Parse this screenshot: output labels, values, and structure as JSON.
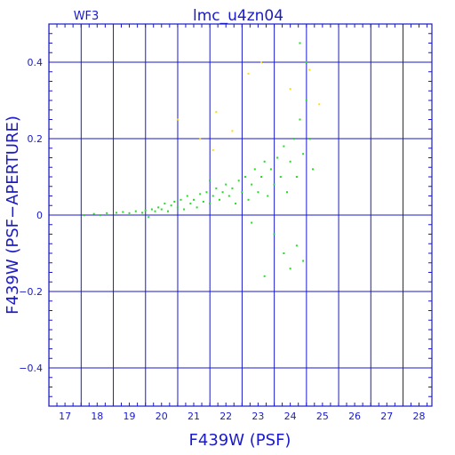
{
  "chart_data": {
    "type": "scatter",
    "title": "lmc_u4zn04",
    "panel_label": "WF3",
    "xlabel": "F439W (PSF)",
    "ylabel": "F439W (PSF−APERTURE)",
    "xlim": [
      16.5,
      28.4
    ],
    "ylim": [
      -0.5,
      0.5
    ],
    "x_ticks": [
      17,
      18,
      19,
      20,
      21,
      22,
      23,
      24,
      25,
      26,
      27,
      28
    ],
    "y_ticks": [
      0.4,
      0.2,
      0,
      -0.2,
      -0.4
    ],
    "y_tick_labels": [
      "0.4",
      "0.2",
      "0",
      "−0.2",
      "−0.4"
    ],
    "grid": true,
    "legend": "none",
    "colors": {
      "axes": "#1a1acc",
      "grid": "#1a1acc",
      "main_points": "#22dd22",
      "outlier_points": "#ffdd00"
    },
    "series": [
      {
        "color": "#22dd22",
        "points": [
          [
            17.6,
            0.0
          ],
          [
            17.9,
            0.003
          ],
          [
            18.1,
            0.0
          ],
          [
            18.3,
            0.005
          ],
          [
            18.6,
            0.006
          ],
          [
            18.8,
            0.008
          ],
          [
            19.0,
            0.005
          ],
          [
            19.2,
            0.01
          ],
          [
            19.4,
            0.006
          ],
          [
            19.5,
            0.012
          ],
          [
            19.6,
            -0.005
          ],
          [
            19.7,
            0.015
          ],
          [
            19.8,
            0.01
          ],
          [
            19.9,
            0.02
          ],
          [
            20.0,
            0.015
          ],
          [
            20.1,
            0.03
          ],
          [
            20.2,
            0.01
          ],
          [
            20.3,
            0.025
          ],
          [
            20.4,
            0.035
          ],
          [
            20.5,
            0.02
          ],
          [
            20.6,
            0.04
          ],
          [
            20.7,
            0.015
          ],
          [
            20.8,
            0.05
          ],
          [
            20.9,
            0.03
          ],
          [
            21.0,
            0.04
          ],
          [
            21.1,
            0.02
          ],
          [
            21.2,
            0.055
          ],
          [
            21.3,
            0.035
          ],
          [
            21.4,
            0.06
          ],
          [
            21.5,
            0.03
          ],
          [
            21.6,
            0.05
          ],
          [
            21.7,
            0.07
          ],
          [
            21.8,
            0.04
          ],
          [
            21.9,
            0.06
          ],
          [
            22.0,
            0.08
          ],
          [
            22.1,
            0.05
          ],
          [
            22.2,
            0.07
          ],
          [
            22.3,
            0.03
          ],
          [
            22.4,
            0.09
          ],
          [
            22.5,
            0.06
          ],
          [
            22.6,
            0.1
          ],
          [
            22.7,
            0.04
          ],
          [
            22.8,
            0.08
          ],
          [
            22.9,
            0.12
          ],
          [
            23.0,
            0.06
          ],
          [
            23.1,
            0.1
          ],
          [
            23.2,
            0.14
          ],
          [
            23.3,
            0.05
          ],
          [
            23.4,
            0.12
          ],
          [
            23.5,
            0.08
          ],
          [
            23.6,
            0.15
          ],
          [
            23.7,
            0.1
          ],
          [
            23.8,
            0.18
          ],
          [
            23.9,
            0.06
          ],
          [
            24.0,
            0.14
          ],
          [
            24.1,
            0.2
          ],
          [
            24.2,
            0.1
          ],
          [
            24.3,
            0.25
          ],
          [
            24.4,
            0.16
          ],
          [
            24.5,
            0.3
          ],
          [
            24.6,
            0.2
          ],
          [
            24.7,
            0.12
          ],
          [
            23.5,
            -0.05
          ],
          [
            23.8,
            -0.1
          ],
          [
            24.0,
            -0.14
          ],
          [
            24.2,
            -0.08
          ],
          [
            24.4,
            -0.12
          ],
          [
            24.5,
            0.4
          ],
          [
            24.3,
            0.45
          ],
          [
            23.2,
            -0.16
          ],
          [
            22.8,
            -0.02
          ],
          [
            21.5,
            0.09
          ]
        ]
      },
      {
        "color": "#ffdd00",
        "points": [
          [
            20.5,
            0.25
          ],
          [
            21.7,
            0.27
          ],
          [
            21.2,
            0.2
          ],
          [
            22.2,
            0.22
          ],
          [
            22.7,
            0.37
          ],
          [
            24.0,
            0.33
          ],
          [
            24.6,
            0.38
          ],
          [
            24.9,
            0.29
          ],
          [
            21.6,
            0.17
          ],
          [
            23.1,
            0.4
          ]
        ]
      }
    ]
  }
}
